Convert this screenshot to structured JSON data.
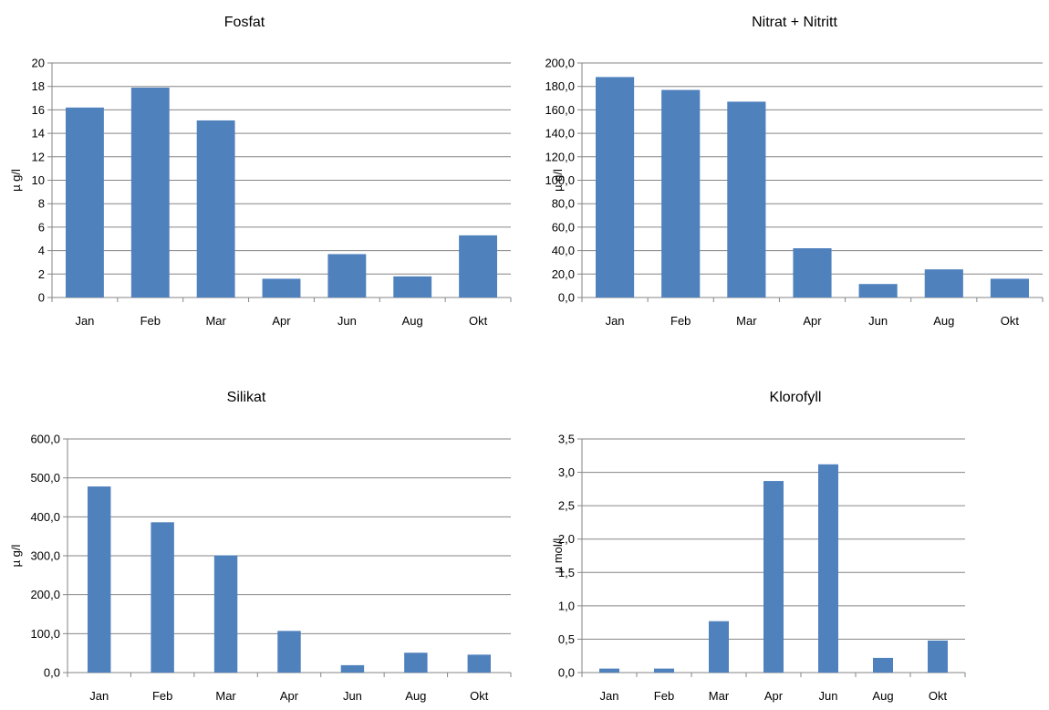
{
  "chart_data": [
    {
      "type": "bar",
      "title": "Fosfat",
      "ylabel": "µ g/l",
      "categories": [
        "Jan",
        "Feb",
        "Mar",
        "Apr",
        "Jun",
        "Aug",
        "Okt"
      ],
      "values": [
        16.2,
        17.9,
        15.1,
        1.6,
        3.7,
        1.8,
        5.3
      ],
      "ylim": [
        0,
        20
      ],
      "yticks": [
        "0",
        "2",
        "4",
        "6",
        "8",
        "10",
        "12",
        "14",
        "16",
        "18",
        "20"
      ],
      "grid": true,
      "color": "#4f81bd"
    },
    {
      "type": "bar",
      "title": "Nitrat + Nitritt",
      "ylabel": "µ g/l",
      "categories": [
        "Jan",
        "Feb",
        "Mar",
        "Apr",
        "Jun",
        "Aug",
        "Okt"
      ],
      "values": [
        188.0,
        177.0,
        167.0,
        42.0,
        11.5,
        24.0,
        16.0
      ],
      "ylim": [
        0,
        200
      ],
      "yticks": [
        "0,0",
        "20,0",
        "40,0",
        "60,0",
        "80,0",
        "100,0",
        "120,0",
        "140,0",
        "160,0",
        "180,0",
        "200,0"
      ],
      "grid": true,
      "color": "#4f81bd"
    },
    {
      "type": "bar",
      "title": "Silikat",
      "ylabel": "µ g/l",
      "categories": [
        "Jan",
        "Feb",
        "Mar",
        "Apr",
        "Jun",
        "Aug",
        "Okt"
      ],
      "values": [
        478.0,
        386.0,
        301.0,
        107.0,
        19.0,
        51.0,
        46.0
      ],
      "ylim": [
        0,
        600
      ],
      "yticks": [
        "0,0",
        "100,0",
        "200,0",
        "300,0",
        "400,0",
        "500,0",
        "600,0"
      ],
      "grid": true,
      "color": "#4f81bd"
    },
    {
      "type": "bar",
      "title": "Klorofyll",
      "ylabel": "µ mol/l",
      "categories": [
        "Jan",
        "Feb",
        "Mar",
        "Apr",
        "Jun",
        "Aug",
        "Okt"
      ],
      "values": [
        0.06,
        0.06,
        0.77,
        2.87,
        3.12,
        0.22,
        0.48
      ],
      "ylim": [
        0,
        3.5
      ],
      "yticks": [
        "0,0",
        "0,5",
        "1,0",
        "1,5",
        "2,0",
        "2,5",
        "3,0",
        "3,5"
      ],
      "grid": true,
      "color": "#4f81bd"
    }
  ]
}
